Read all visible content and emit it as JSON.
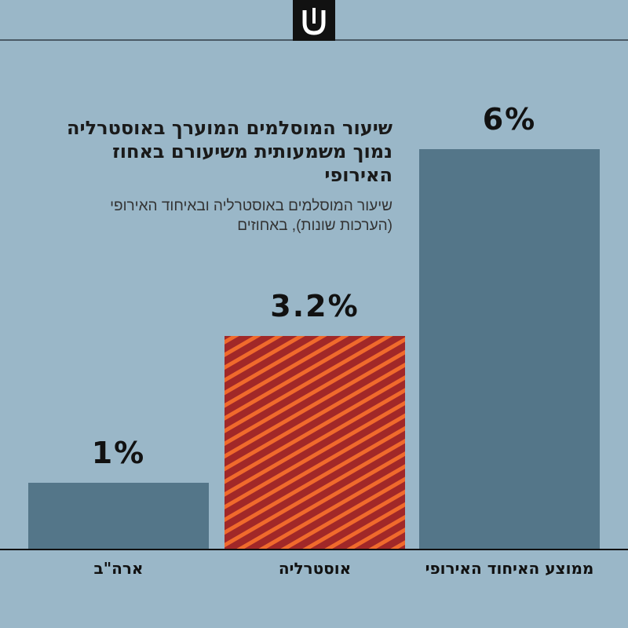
{
  "chart_data": {
    "type": "bar",
    "title": "שיעור המוסלמים המוערך באוסטרליה נמוך משמעותית משיעורם באחוז האירופי",
    "subtitle": "שיעור המוסלמים באוסטרליה ובאיחוד האירופי (הערכות שונות), באחוזים",
    "xlabel": "",
    "ylabel": "",
    "categories": [
      "ארה\"ב",
      "אוסטרליה",
      "ממוצע האיחוד האירופי"
    ],
    "values": [
      1,
      3.2,
      6
    ],
    "value_labels": [
      "1%",
      "3.2%",
      "6%"
    ],
    "ylim": [
      0,
      7
    ],
    "grid": false,
    "legend": "none",
    "colors": {
      "default_bar": "#547689",
      "highlight_stripe_a": "#a12828",
      "highlight_stripe_b": "#f06a2c",
      "background": "#9ab7c8",
      "axis": "#111111"
    },
    "highlight_index": 1
  },
  "header": {
    "logo": "shin-logo-icon"
  }
}
